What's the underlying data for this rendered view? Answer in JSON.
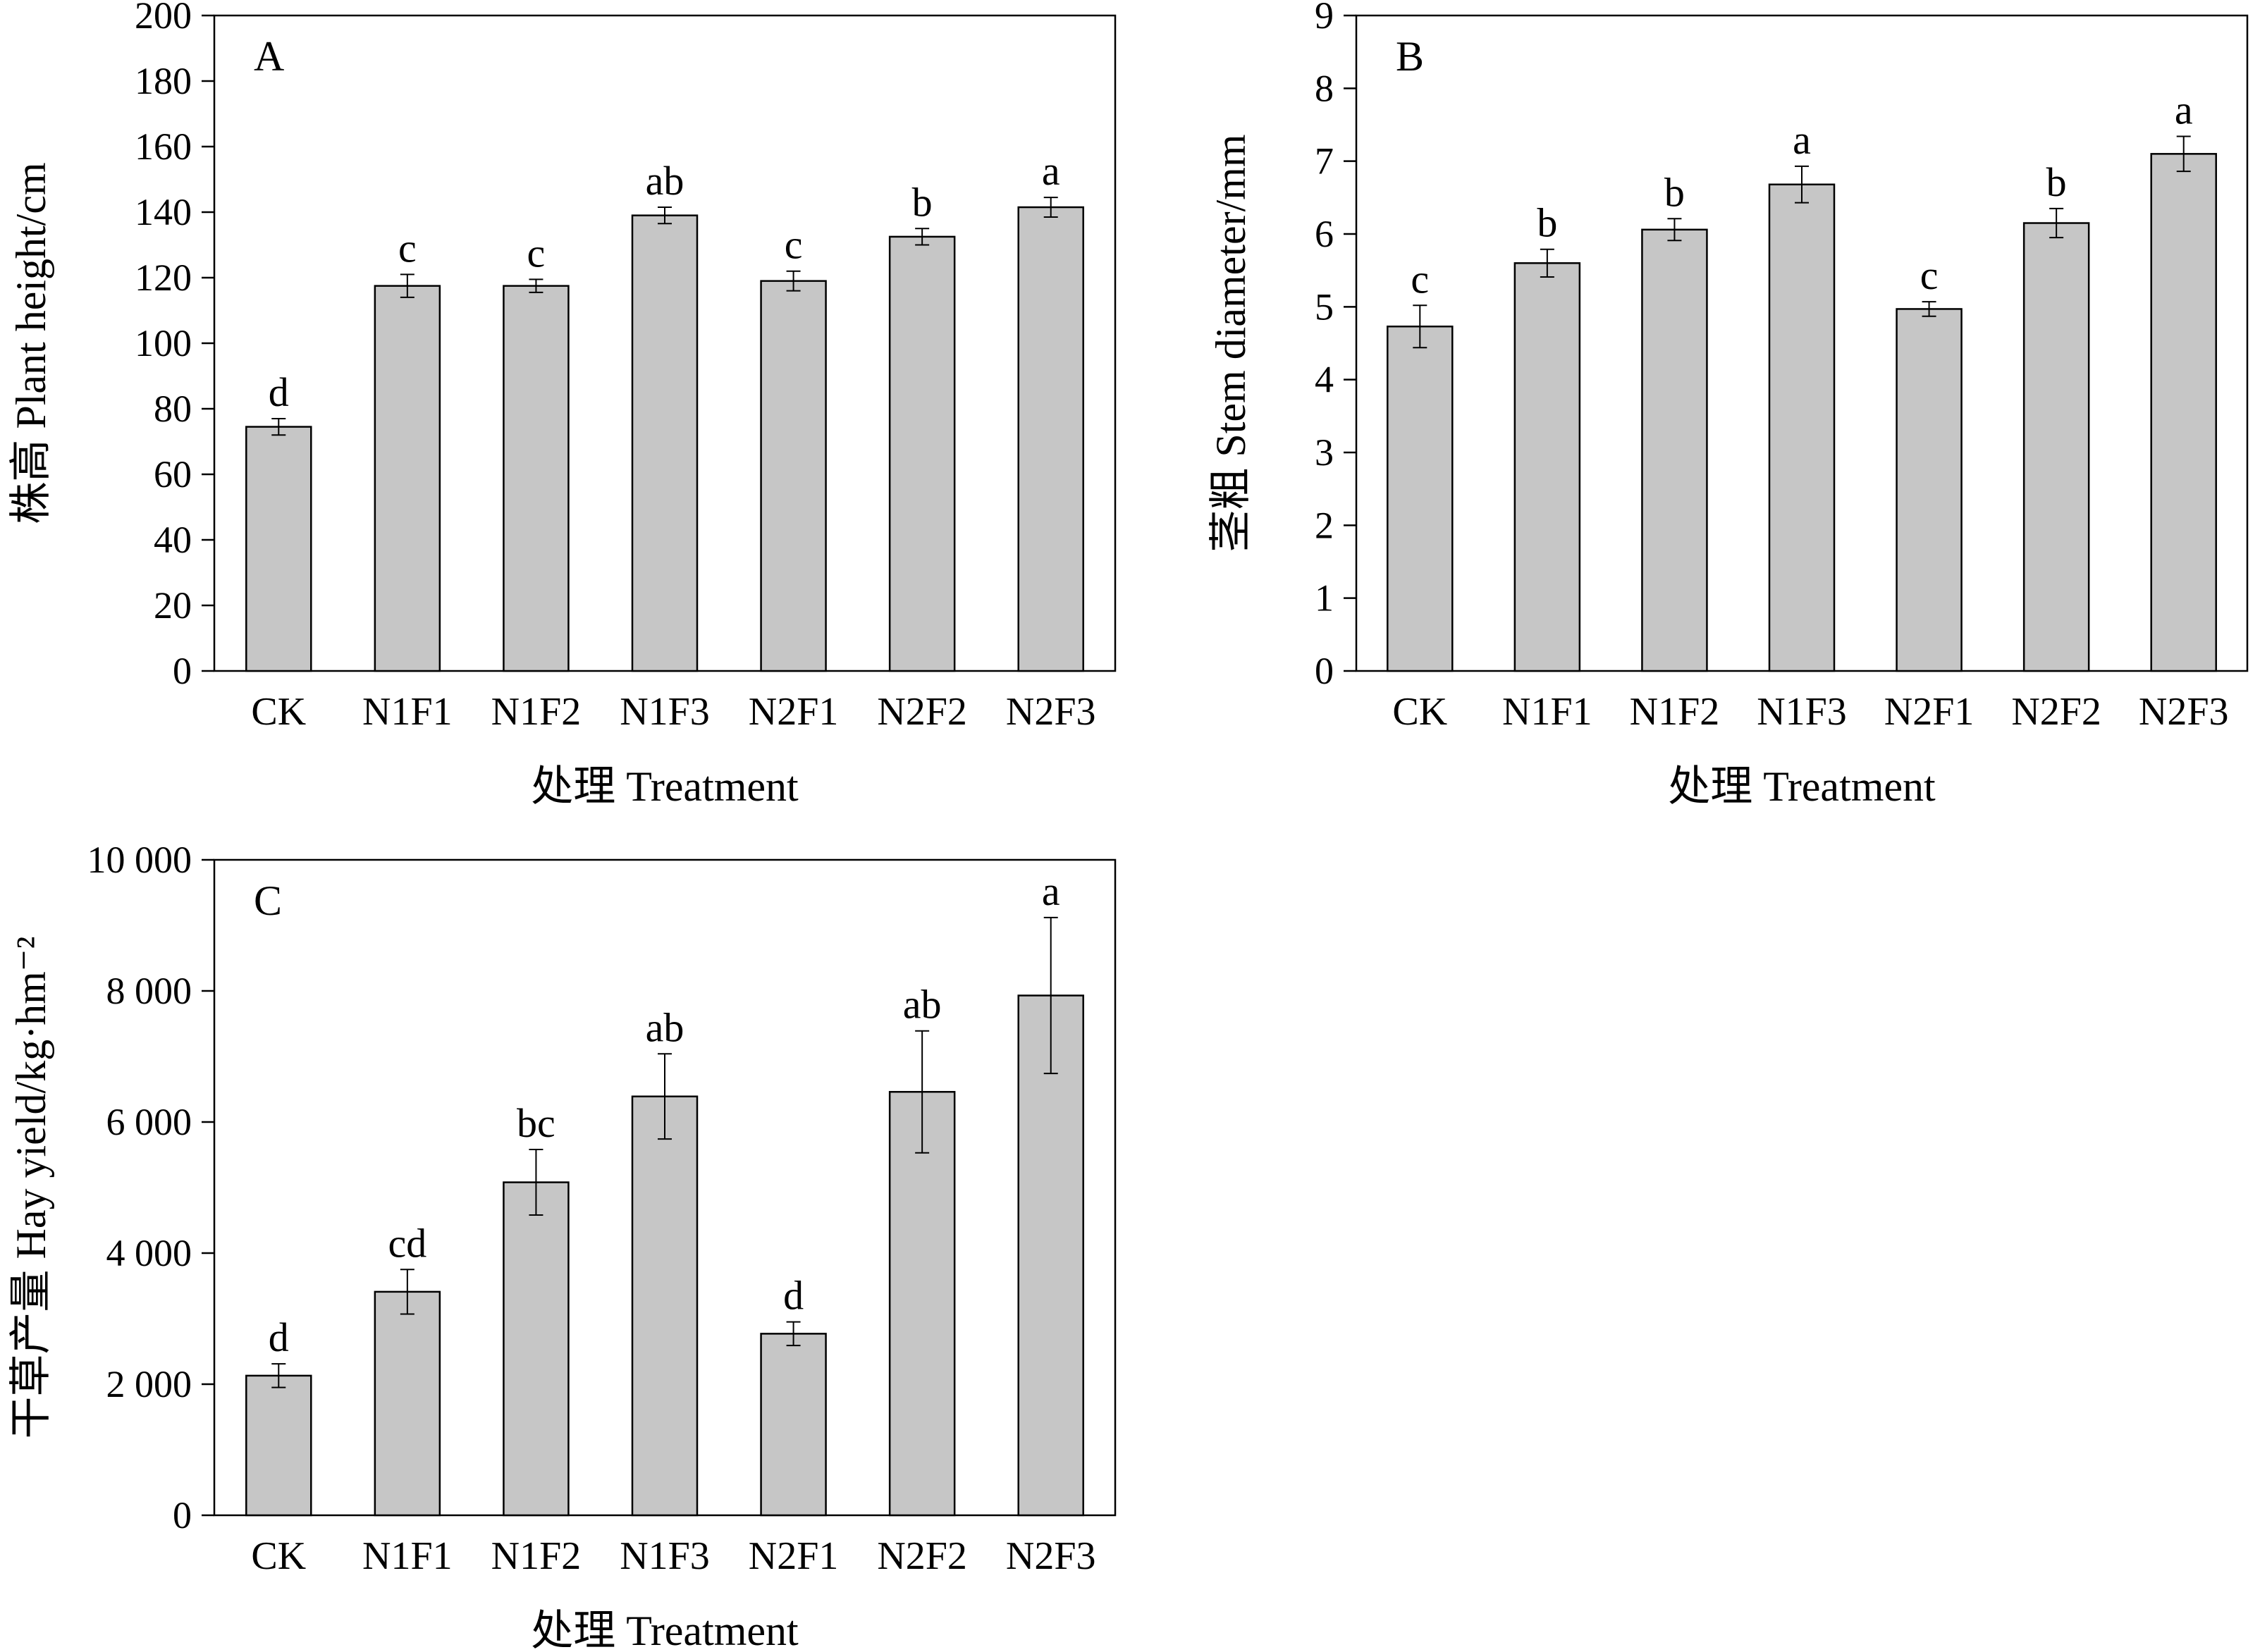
{
  "colors": {
    "bar_fill": "#c6c6c6",
    "stroke": "#000000",
    "background": "#ffffff"
  },
  "chart_data": [
    {
      "panel": "A",
      "type": "bar",
      "ylabel": "株高 Plant height/cm",
      "xlabel": "处理 Treatment",
      "ylim": [
        0,
        200
      ],
      "yticks": [
        0,
        20,
        40,
        60,
        80,
        100,
        120,
        140,
        160,
        180,
        200
      ],
      "ytick_labels": [
        "0",
        "20",
        "40",
        "60",
        "80",
        "100",
        "120",
        "140",
        "160",
        "180",
        "200"
      ],
      "categories": [
        "CK",
        "N1F1",
        "N1F2",
        "N1F3",
        "N2F1",
        "N2F2",
        "N2F3"
      ],
      "values": [
        74.5,
        117.5,
        117.5,
        139,
        119,
        132.5,
        141.5
      ],
      "errors": [
        2.5,
        3.5,
        2,
        2.5,
        3,
        2.5,
        3
      ],
      "letters": [
        "d",
        "c",
        "c",
        "ab",
        "c",
        "b",
        "a"
      ],
      "grid": false
    },
    {
      "panel": "B",
      "type": "bar",
      "ylabel": "茎粗 Stem diameter/mm",
      "xlabel": "处理 Treatment",
      "ylim": [
        0,
        9
      ],
      "yticks": [
        0,
        1,
        2,
        3,
        4,
        5,
        6,
        7,
        8,
        9
      ],
      "ytick_labels": [
        "0",
        "1",
        "2",
        "3",
        "4",
        "5",
        "6",
        "7",
        "8",
        "9"
      ],
      "categories": [
        "CK",
        "N1F1",
        "N1F2",
        "N1F3",
        "N2F1",
        "N2F2",
        "N2F3"
      ],
      "values": [
        4.73,
        5.6,
        6.06,
        6.68,
        4.97,
        6.15,
        7.1
      ],
      "errors": [
        0.29,
        0.19,
        0.15,
        0.25,
        0.1,
        0.2,
        0.24
      ],
      "letters": [
        "c",
        "b",
        "b",
        "a",
        "c",
        "b",
        "a"
      ],
      "grid": false
    },
    {
      "panel": "C",
      "type": "bar",
      "ylabel": "干草产量 Hay yield/kg·hm⁻²",
      "xlabel": "处理 Treatment",
      "ylim": [
        0,
        10000
      ],
      "yticks": [
        0,
        2000,
        4000,
        6000,
        8000,
        10000
      ],
      "ytick_labels": [
        "0",
        "2 000",
        "4 000",
        "6 000",
        "8 000",
        "10 000"
      ],
      "categories": [
        "CK",
        "N1F1",
        "N1F2",
        "N1F3",
        "N2F1",
        "N2F2",
        "N2F3"
      ],
      "values": [
        2130,
        3410,
        5080,
        6390,
        2770,
        6460,
        7930
      ],
      "errors": [
        180,
        340,
        500,
        650,
        180,
        930,
        1190
      ],
      "letters": [
        "d",
        "cd",
        "bc",
        "ab",
        "d",
        "ab",
        "a"
      ],
      "grid": false
    }
  ]
}
